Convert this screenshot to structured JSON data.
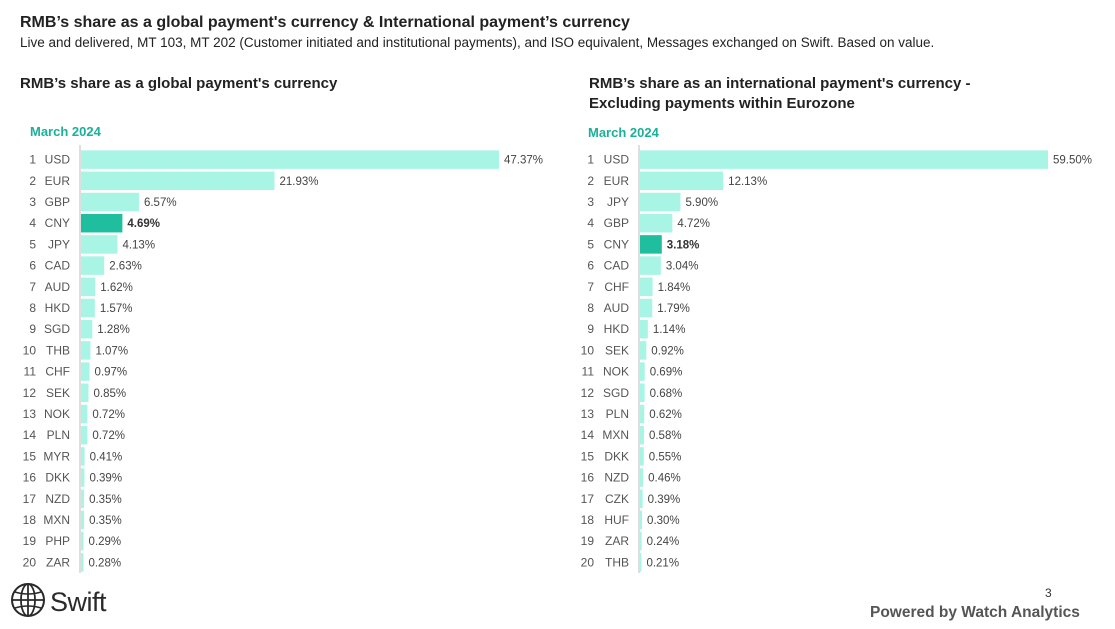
{
  "header": {
    "title": "RMB’s share as a global payment's currency & International payment’s currency",
    "subtitle": "Live and delivered, MT 103, MT 202 (Customer initiated and institutional payments), and ISO equivalent, Messages exchanged on Swift. Based on value."
  },
  "colors": {
    "bar": "#a8f5e6",
    "highlight": "#1fbe9f",
    "accent_text": "#1ab09a"
  },
  "chart_data": [
    {
      "type": "bar",
      "orientation": "horizontal",
      "title": "RMB’s share as a global payment's currency",
      "period": "March 2024",
      "ranks": [
        "1",
        "2",
        "3",
        "4",
        "5",
        "6",
        "7",
        "8",
        "9",
        "10",
        "11",
        "12",
        "13",
        "14",
        "15",
        "16",
        "17",
        "18",
        "19",
        "20"
      ],
      "categories": [
        "USD",
        "EUR",
        "GBP",
        "CNY",
        "JPY",
        "CAD",
        "AUD",
        "HKD",
        "SGD",
        "THB",
        "CHF",
        "SEK",
        "NOK",
        "PLN",
        "MYR",
        "DKK",
        "NZD",
        "MXN",
        "PHP",
        "ZAR"
      ],
      "values": [
        47.37,
        21.93,
        6.57,
        4.69,
        4.13,
        2.63,
        1.62,
        1.57,
        1.28,
        1.07,
        0.97,
        0.85,
        0.72,
        0.72,
        0.41,
        0.39,
        0.35,
        0.35,
        0.29,
        0.28
      ],
      "labels": [
        "47.37%",
        "21.93%",
        "6.57%",
        "4.69%",
        "4.13%",
        "2.63%",
        "1.62%",
        "1.57%",
        "1.28%",
        "1.07%",
        "0.97%",
        "0.85%",
        "0.72%",
        "0.72%",
        "0.41%",
        "0.39%",
        "0.35%",
        "0.35%",
        "0.29%",
        "0.28%"
      ],
      "highlight": "CNY"
    },
    {
      "type": "bar",
      "orientation": "horizontal",
      "title": "RMB’s share as an international payment's currency - Excluding payments within Eurozone",
      "period": "March 2024",
      "ranks": [
        "1",
        "2",
        "3",
        "4",
        "5",
        "6",
        "7",
        "8",
        "9",
        "10",
        "11",
        "12",
        "13",
        "14",
        "15",
        "16",
        "17",
        "18",
        "19",
        "20"
      ],
      "categories": [
        "USD",
        "EUR",
        "JPY",
        "GBP",
        "CNY",
        "CAD",
        "CHF",
        "AUD",
        "HKD",
        "SEK",
        "NOK",
        "SGD",
        "PLN",
        "MXN",
        "DKK",
        "NZD",
        "CZK",
        "HUF",
        "ZAR",
        "THB"
      ],
      "values": [
        59.5,
        12.13,
        5.9,
        4.72,
        3.18,
        3.04,
        1.84,
        1.79,
        1.14,
        0.92,
        0.69,
        0.68,
        0.62,
        0.58,
        0.55,
        0.46,
        0.39,
        0.3,
        0.24,
        0.21
      ],
      "labels": [
        "59.50%",
        "12.13%",
        "5.90%",
        "4.72%",
        "3.18%",
        "3.04%",
        "1.84%",
        "1.79%",
        "1.14%",
        "0.92%",
        "0.69%",
        "0.68%",
        "0.62%",
        "0.58%",
        "0.55%",
        "0.46%",
        "0.39%",
        "0.30%",
        "0.24%",
        "0.21%"
      ],
      "highlight": "CNY"
    }
  ],
  "footer": {
    "logo_text": "Swift",
    "logo_icon": "globe-icon",
    "page_number": "3",
    "powered_by": "Powered by Watch Analytics"
  }
}
